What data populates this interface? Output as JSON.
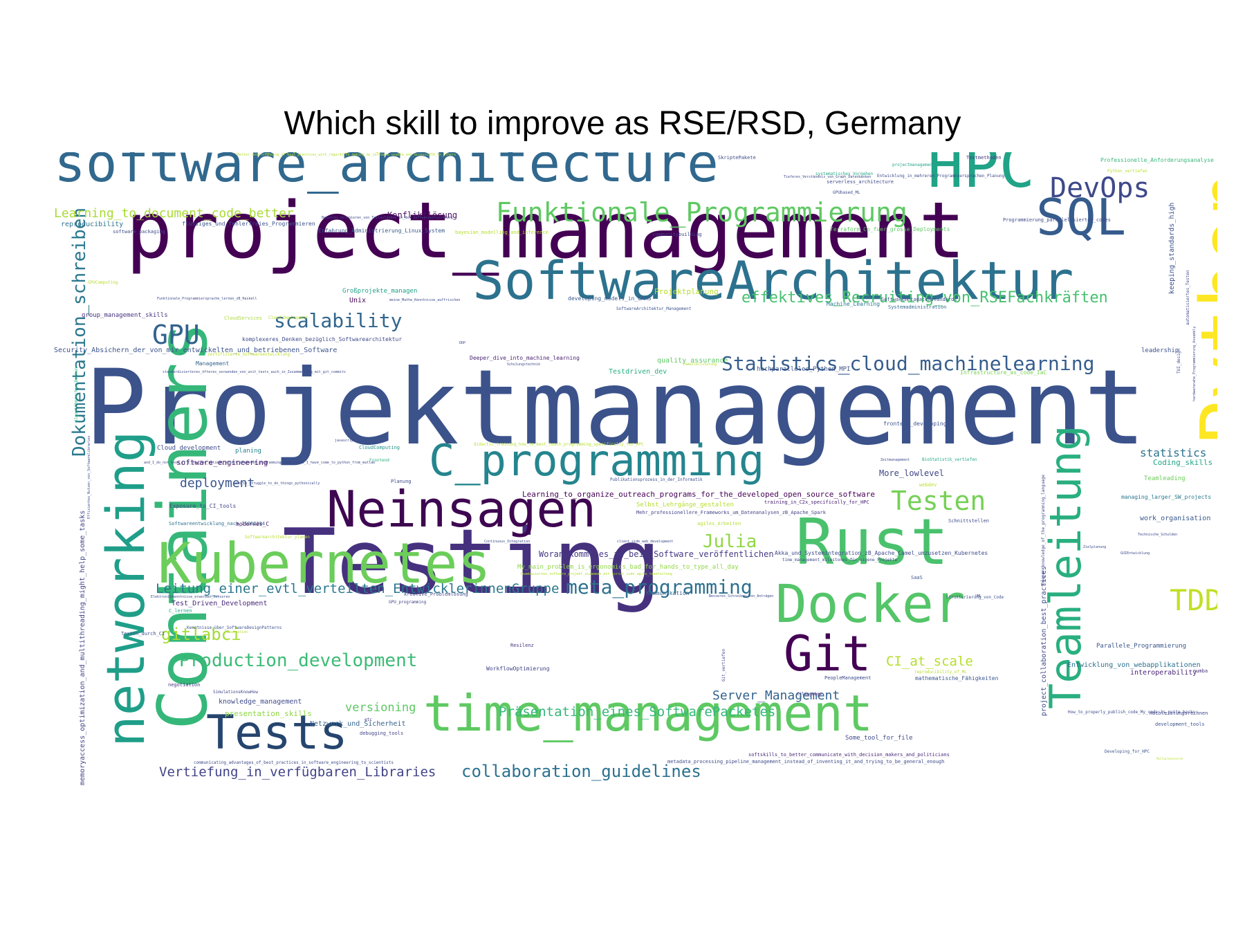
{
  "title": "Which skill to improve as RSE/RSD, Germany",
  "words": [
    {
      "text": "Projektmanagement",
      "c": "#3b528b"
    },
    {
      "text": "project_management",
      "c": "#440154"
    },
    {
      "text": "Testing",
      "c": "#46317e"
    },
    {
      "text": "software_architecture",
      "c": "#31688e"
    },
    {
      "text": "SoftwareArchitektur",
      "c": "#2c728e"
    },
    {
      "text": "HPC",
      "c": "#20a386"
    },
    {
      "text": "SQL",
      "c": "#365c8d"
    },
    {
      "text": "DevOps",
      "c": "#3e4989"
    },
    {
      "text": "Funktionale_Programmierung",
      "c": "#5ec962"
    },
    {
      "text": "Python",
      "c": "#fde725"
    },
    {
      "text": "Containers",
      "c": "#35b779"
    },
    {
      "text": "networking",
      "c": "#1f9e89"
    },
    {
      "text": "Teamleitung",
      "c": "#29af7f"
    },
    {
      "text": "Rust",
      "c": "#4ac16d"
    },
    {
      "text": "Docker",
      "c": "#54c568"
    },
    {
      "text": "Git",
      "c": "#440154"
    },
    {
      "text": "Neinsagen",
      "c": "#3e0751"
    },
    {
      "text": "Kubernetes",
      "c": "#6ccd5a"
    },
    {
      "text": "C_programming",
      "c": "#25858e"
    },
    {
      "text": "time_management",
      "c": "#5ec962"
    },
    {
      "text": "Tests",
      "c": "#26456e"
    },
    {
      "text": "Dokumentation_schreiben",
      "c": "#2a788e"
    },
    {
      "text": "scalability",
      "c": "#31668e"
    },
    {
      "text": "GPU",
      "c": "#33638d"
    },
    {
      "text": "Statistics_cloud_machinelearning",
      "c": "#365d8d"
    },
    {
      "text": "effektives_Recruiting_von_RSEFachkräften",
      "c": "#46c06f"
    },
    {
      "text": "Testen",
      "c": "#75d054"
    },
    {
      "text": "Julia",
      "c": "#8fd744"
    },
    {
      "text": "TDD",
      "c": "#c0df25"
    },
    {
      "text": "meta_programming",
      "c": "#2d708e"
    },
    {
      "text": "Production_development",
      "c": "#3bbb75"
    },
    {
      "text": "collaboration_guidelines",
      "c": "#2c728e"
    },
    {
      "text": "Präsentation_eines_SoftwarePacketes",
      "c": "#35b779"
    },
    {
      "text": "Vertiefung_in_verfügbaren_Libraries",
      "c": "#414487"
    },
    {
      "text": "Leitung_einer_evtl_verteilten_EntwicklerinnenGruppe",
      "c": "#2a788e"
    },
    {
      "text": "gitlabci",
      "c": "#a5db36"
    },
    {
      "text": "CI_at_scale",
      "c": "#b5de2b"
    },
    {
      "text": "Server_Management",
      "c": "#33638d"
    },
    {
      "text": "deployment",
      "c": "#39568c"
    },
    {
      "text": "statistics",
      "c": "#2c738e"
    },
    {
      "text": "Learning_to_document_code_better",
      "c": "#a8db34"
    },
    {
      "text": "versioning",
      "c": "#5ec962"
    },
    {
      "text": "Woran_kommt_es_an_beim_Software_veröffentlichen",
      "c": "#443983"
    },
    {
      "text": "More_lowlevel",
      "c": "#404688"
    },
    {
      "text": "Konfliktlösung",
      "c": "#471063"
    },
    {
      "text": "Learning_to_organize_outreach_programs_for_the_developed_open_source_software",
      "c": "#440154"
    },
    {
      "text": "memoryaccess_optimization_and_multithreading_might_help_some_tasks",
      "c": "#404688"
    },
    {
      "text": "keeping_standards_high",
      "c": "#3b528b"
    },
    {
      "text": "project_collaboration_best_practices",
      "c": "#3e4a89"
    },
    {
      "text": "Coding_skills",
      "c": "#20a486"
    },
    {
      "text": "work_organisation",
      "c": "#38598c"
    },
    {
      "text": "interoperability",
      "c": "#482475"
    },
    {
      "text": "Parallele_Programmierung",
      "c": "#39558c"
    },
    {
      "text": "Entwicklung_von_webapplikationen",
      "c": "#2c718e"
    },
    {
      "text": "knowledge_management",
      "c": "#3e4a89"
    },
    {
      "text": "presentation_skills",
      "c": "#8fd744"
    },
    {
      "text": "Netzwerk_und_Sicherheit",
      "c": "#33628d"
    },
    {
      "text": "software_engineering",
      "c": "#48186a"
    },
    {
      "text": "Test_Driven_Development",
      "c": "#482878"
    },
    {
      "text": "Security_Absichern_der_von_mir_entwickelten_und_betriebenen_Software",
      "c": "#3b528b"
    },
    {
      "text": "komplexeres_Denken_bezüglich_Softwarearchitektur",
      "c": "#3e4a89"
    },
    {
      "text": "group_management_skills",
      "c": "#46337e"
    },
    {
      "text": "Projektmanagement_mit_Git",
      "c": "#a0da39"
    },
    {
      "text": "hochparalleles_Python_MPI",
      "c": "#3b528b"
    },
    {
      "text": "Testdriven_dev",
      "c": "#29af7f"
    },
    {
      "text": "quality_assurance",
      "c": "#5ec962"
    },
    {
      "text": "Deeper_dive_into_machine_learning",
      "c": "#481f70"
    },
    {
      "text": "Projektplanung",
      "c": "#b5de2b"
    },
    {
      "text": "Wie_testen_man_systematisch_selbstgeschriebene_Software",
      "c": "#d8e219"
    },
    {
      "text": "reproducibility",
      "c": "#2c728e"
    },
    {
      "text": "flüssiges_und_fehlerfreies_Programmieren",
      "c": "#3b528b"
    },
    {
      "text": "Erfahrung_Administrierung_Linux_System",
      "c": "#38598c"
    },
    {
      "text": "communitybuilding",
      "c": "#404688"
    },
    {
      "text": "Großprojekte_managen",
      "c": "#1f9e89"
    },
    {
      "text": "Unix",
      "c": "#440154"
    },
    {
      "text": "developing_models_in_GAMS",
      "c": "#38598c"
    },
    {
      "text": "Machine_Learning",
      "c": "#2a788e"
    },
    {
      "text": "Softwaremetadatenstandards",
      "c": "#3b528b"
    },
    {
      "text": "Systemadministration",
      "c": "#31688e"
    },
    {
      "text": "Testmethoden",
      "c": "#443983"
    },
    {
      "text": "Professionelle_Anforderungsanalyse",
      "c": "#35b779"
    },
    {
      "text": "Programmierung_parallelisierten_codes",
      "c": "#3e4989"
    },
    {
      "text": "Terraform_Co_fuer_grosse_Deployments",
      "c": "#5ec962"
    },
    {
      "text": "Infrastructure_as_code_IaC",
      "c": "#7ad151"
    },
    {
      "text": "leadership",
      "c": "#3b528b"
    },
    {
      "text": "frontend_developing",
      "c": "#3b528b"
    },
    {
      "text": "Cloud_development",
      "c": "#3e4a89"
    },
    {
      "text": "planing",
      "c": "#26828e"
    },
    {
      "text": "CloudComputing",
      "c": "#1f968b"
    },
    {
      "text": "Teamleading",
      "c": "#6ccd5a"
    },
    {
      "text": "managing_larger_SW_projects",
      "c": "#2a788e"
    },
    {
      "text": "Selbst_Lehrgänge_gestalten",
      "c": "#b5de2b"
    },
    {
      "text": "Mehr_professionellere_Frameworks_um_Datenanalysen_zB_Apache_Spark",
      "c": "#414487"
    },
    {
      "text": "training_in_C2x_specifically_for_HPC",
      "c": "#482173"
    },
    {
      "text": "Schnittstellen",
      "c": "#3e4a89"
    },
    {
      "text": "Exposure_to_CI_tools",
      "c": "#414487"
    },
    {
      "text": "Softwareentwicklung_nach_ISO62304",
      "c": "#2d708e"
    },
    {
      "text": "modernes_C",
      "c": "#471164"
    },
    {
      "text": "Akka_und_Systemintegration_zB_Apache_Camel_umzusetzen_Kubernetes",
      "c": "#3e4a89"
    },
    {
      "text": "My_main_problem_is_ergonomics_bad_for_hands_to_type_all_day",
      "c": "#8fd744"
    },
    {
      "text": "Kommunikation",
      "c": "#33638d"
    },
    {
      "text": "Resilenz",
      "c": "#46327e"
    },
    {
      "text": "WorkflowOptimierung",
      "c": "#414487"
    },
    {
      "text": "PeopleManagement",
      "c": "#3e4989"
    },
    {
      "text": "mathematische_Fähigkeiten",
      "c": "#39568c"
    },
    {
      "text": "Hochleistungsrechnen",
      "c": "#414487"
    },
    {
      "text": "development_tools",
      "c": "#3b528b"
    },
    {
      "text": "Developing_for_HPC",
      "c": "#3b528b"
    },
    {
      "text": "numba",
      "c": "#46337e"
    },
    {
      "text": "softskills_to_better_communicate_with_decision_makers_and_politicians",
      "c": "#482878"
    },
    {
      "text": "metadata_processing_pipeline_management_instead_of_inventing_it_and_trying_to_be_general_enough",
      "c": "#3e4a89"
    },
    {
      "text": "communicating_advantages_of_best_practices_in_software_engineering_to_scientists",
      "c": "#3e4a89"
    },
    {
      "text": "negotiation",
      "c": "#443983"
    },
    {
      "text": "SimulationsKnowHow",
      "c": "#404688"
    },
    {
      "text": "debugging_tools",
      "c": "#414487"
    },
    {
      "text": "etc",
      "c": "#472f7d"
    },
    {
      "text": "Some_tool_for_file",
      "c": "#3e4a89"
    },
    {
      "text": "C_language",
      "c": "#482576"
    },
    {
      "text": "reproducibility_of_ML",
      "c": "#b5de2b"
    },
    {
      "text": "How_to_properly_publish_code_My_code_is_quite_hacky",
      "c": "#3e4a89"
    },
    {
      "text": "Git_vertiefen",
      "c": "#3e4a89"
    },
    {
      "text": "kreative_Problemlösung",
      "c": "#3e4a89"
    },
    {
      "text": "GPU_programming",
      "c": "#414487"
    },
    {
      "text": "C_lernen",
      "c": "#20a486"
    },
    {
      "text": "Testen_durch_CI",
      "c": "#3b528b"
    },
    {
      "text": "Kenntnisse_über_SoftwareDesignPatterns",
      "c": "#3b528b"
    },
    {
      "text": "SaaS",
      "c": "#3b528b"
    },
    {
      "text": "Strukturierung_von_Code",
      "c": "#3b528b"
    },
    {
      "text": "Management",
      "c": "#33638d"
    },
    {
      "text": "zertifizierte_Softwareentwicklung",
      "c": "#b5de2b"
    },
    {
      "text": "CloudServices",
      "c": "#a8db34"
    },
    {
      "text": "Cloud_Deployment",
      "c": "#b5de2b"
    },
    {
      "text": "GPUComputing",
      "c": "#b5de2b"
    },
    {
      "text": "Funktionale_Programmiersprache_lernen_zB_Haskell",
      "c": "#3e4a89"
    },
    {
      "text": "meine_Mathe_Kenntnisse_auffrischen",
      "c": "#3e4a89"
    },
    {
      "text": "SoftwareArchitektur_Management",
      "c": "#3b528b"
    },
    {
      "text": "GPUbased_ML",
      "c": "#3e4a89"
    },
    {
      "text": "serverless_architecture",
      "c": "#3e4a89"
    },
    {
      "text": "systematisches_Vorgehen",
      "c": "#20a486"
    },
    {
      "text": "projectmanagement",
      "c": "#20a486"
    },
    {
      "text": "SkriptePakete",
      "c": "#3e4a89"
    },
    {
      "text": "Python_vertiefen",
      "c": "#b5de2b"
    },
    {
      "text": "software_packaging",
      "c": "#3e4a89"
    },
    {
      "text": "bayesian_modelling_and_inference",
      "c": "#b5de2b"
    },
    {
      "text": "Planung",
      "c": "#3e4a89"
    },
    {
      "text": "Frontend",
      "c": "#29af7f"
    },
    {
      "text": "didactic_training_how_to_best_teach_programming_specifically_for_HPC",
      "c": "#b5de2b"
    },
    {
      "text": "Publikationsprozess_in_der_Informatik",
      "c": "#3e4a89"
    },
    {
      "text": "webdev",
      "c": "#b5de2b"
    },
    {
      "text": "BioStatistik_vertiefen",
      "c": "#20a486"
    },
    {
      "text": "Zeitmanagement",
      "c": "#3e4a89"
    },
    {
      "text": "agiles_Arbeiten",
      "c": "#b5de2b"
    },
    {
      "text": "Continuous_Integration",
      "c": "#3e4a89"
    },
    {
      "text": "client_side_web_development",
      "c": "#3e4a89"
    },
    {
      "text": "javascript",
      "c": "#3e4a89"
    },
    {
      "text": "Softwarearchitektur_planen",
      "c": "#b5de2b"
    },
    {
      "text": "Schulungstechnik",
      "c": "#3e4a89"
    },
    {
      "text": "Parallelisierung",
      "c": "#b5de2b"
    },
    {
      "text": "Algorithmisches_Denken",
      "c": "#29af7f"
    },
    {
      "text": "Effizientes_Nutzen_von_Softwarelibraries",
      "c": "#3e4a89"
    },
    {
      "text": "Deeper_knowledge_of_the_programming_language",
      "c": "#3e4a89"
    },
    {
      "text": "automatisiertes_Testen",
      "c": "#3e4a89"
    },
    {
      "text": "TUI_design",
      "c": "#3e4a89"
    },
    {
      "text": "hardwarenahe_Programmierung_Assembly",
      "c": "#3e4a89"
    },
    {
      "text": "GUIEntwicklung",
      "c": "#3e4a89"
    },
    {
      "text": "Zielplanung",
      "c": "#3e4a89"
    },
    {
      "text": "Technische_Schulden",
      "c": "#3e4a89"
    },
    {
      "text": "time_management_milestones_für_eigene_Projekte",
      "c": "#3e4a89"
    },
    {
      "text": "teambasiertes_software_projekt_zusammen_mit_scrint_code_agile_teamleitung",
      "c": "#b5de2b"
    },
    {
      "text": "and_I_do_not_know_if_I_use_the_optimal_object_oriented_programming_techniques_I_have_come_to_python_from_matlab",
      "c": "#3e4a89"
    },
    {
      "text": "and_so_struggle_to_do_things_pythonically",
      "c": "#3e4a89"
    },
    {
      "text": "Besseres_Schreiben_von_Anträgen",
      "c": "#3e4a89"
    },
    {
      "text": "Elektronikkenntnisse_erwerben_Sensoren",
      "c": "#3e4a89"
    },
    {
      "text": "Evaluation",
      "c": "#b5de2b"
    },
    {
      "text": "Entwicklung_in_mehreren_Programmiersprachen_Planung",
      "c": "#3e4a89"
    },
    {
      "text": "Tieferes_Verständnis_von_Graph_Datenbanken",
      "c": "#3e4a89"
    },
    {
      "text": "Besseres_Delegieren_von_Teilaufgaben_in_der_Softwareentwicklung",
      "c": "#3e4a89"
    },
    {
      "text": "Better_understanding_of_best_practices_with_regards_to_making_my_software_usable_and_accessible_to_others",
      "c": "#b5de2b"
    },
    {
      "text": "standardisierteres_öfteres_verwenden_von_unit_tests_auch_in_Zusammenhang_mit_git_commits",
      "c": "#3e4a89"
    },
    {
      "text": "communityengagement",
      "c": "#3e4a89"
    },
    {
      "text": "Multiprozessoren",
      "c": "#b5de2b"
    },
    {
      "text": "DDP",
      "c": "#3e4a89"
    },
    {
      "text": "UML",
      "c": "#3e4a89"
    }
  ]
}
